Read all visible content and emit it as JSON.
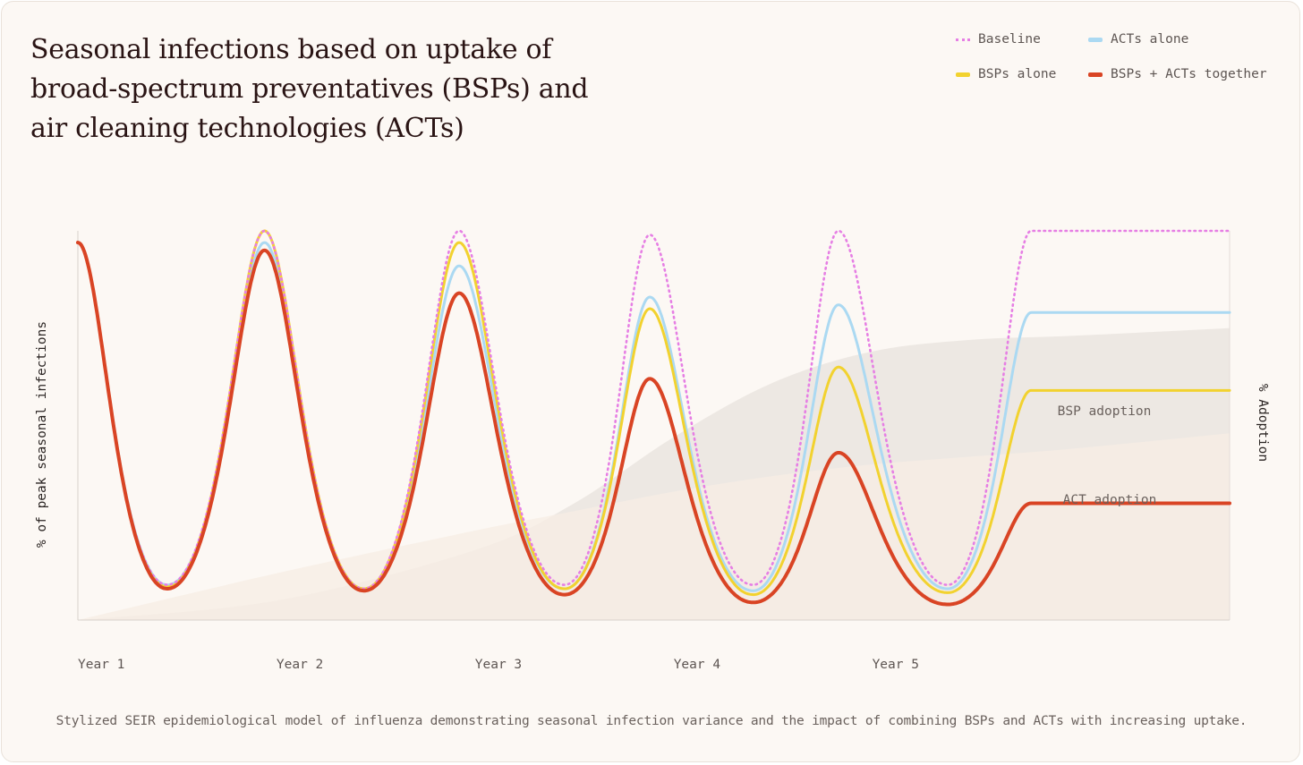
{
  "title": "Seasonal infections based on uptake of broad-spectrum preventatives (BSPs) and air cleaning technologies (ACTs)",
  "caption": "Stylized SEIR epidemiological model of influenza demonstrating seasonal infection variance and the impact of combining BSPs and ACTs with increasing uptake.",
  "legend": [
    {
      "label": "Baseline",
      "color": "#e67fe4",
      "style": "dotted"
    },
    {
      "label": "ACTs alone",
      "color": "#abd9f2",
      "style": "solid"
    },
    {
      "label": "BSPs alone",
      "color": "#f2d22f",
      "style": "solid"
    },
    {
      "label": "BSPs + ACTs together",
      "color": "#d94424",
      "style": "solid"
    }
  ],
  "chart_data": {
    "type": "line",
    "title": "Seasonal infections based on uptake of broad-spectrum preventatives (BSPs) and air cleaning technologies (ACTs)",
    "ylabel": "% of peak seasonal infections",
    "ylabel_right": "% Adoption",
    "xlim": [
      0,
      5.8
    ],
    "ylim": [
      0,
      100
    ],
    "x_ticks": [
      {
        "x": 0,
        "label": "Year 1"
      },
      {
        "x": 1,
        "label": "Year 2"
      },
      {
        "x": 2,
        "label": "Year 3"
      },
      {
        "x": 3,
        "label": "Year 4"
      },
      {
        "x": 4,
        "label": "Year 5"
      }
    ],
    "grid": false,
    "legend_position": "top-right",
    "peak_x": [
      0,
      0.94,
      1.92,
      2.88,
      3.83,
      4.8
    ],
    "trough_x": [
      0.45,
      1.44,
      2.45,
      3.4,
      4.38
    ],
    "series": [
      {
        "name": "Baseline",
        "color": "#e67fe4",
        "style": "dotted",
        "peaks": [
          97,
          100,
          100,
          99,
          100,
          100
        ],
        "troughs": [
          9,
          8,
          9,
          9,
          9
        ]
      },
      {
        "name": "ACTs alone",
        "color": "#abd9f2",
        "style": "solid",
        "peaks": [
          97,
          97,
          91,
          83,
          81,
          79
        ],
        "troughs": [
          9,
          8,
          8,
          7.5,
          8
        ]
      },
      {
        "name": "BSPs alone",
        "color": "#f2d22f",
        "style": "solid",
        "peaks": [
          97,
          100,
          97,
          80,
          65,
          59
        ],
        "troughs": [
          8.5,
          8,
          8,
          6.5,
          7
        ]
      },
      {
        "name": "BSPs + ACTs together",
        "color": "#d94424",
        "style": "solid",
        "peaks": [
          97,
          95,
          84,
          62,
          43,
          30
        ],
        "troughs": [
          8,
          7.5,
          6.5,
          4.5,
          4
        ]
      }
    ],
    "adoption": [
      {
        "name": "BSP adoption",
        "label": "BSP adoption",
        "color": "#ece7e1",
        "x": [
          0,
          1,
          2,
          2.5,
          3,
          3.5,
          4,
          4.5,
          5,
          5.8
        ],
        "y": [
          0,
          5,
          18,
          30,
          47,
          61,
          69,
          72,
          73,
          75
        ]
      },
      {
        "name": "ACT adoption",
        "label": "ACT adoption",
        "color": "#f7eee4",
        "x": [
          0,
          1,
          2,
          2.5,
          3,
          3.5,
          4,
          4.5,
          5,
          5.8
        ],
        "y": [
          0,
          12,
          23,
          28,
          33,
          37,
          40,
          42,
          44,
          48
        ]
      }
    ]
  }
}
